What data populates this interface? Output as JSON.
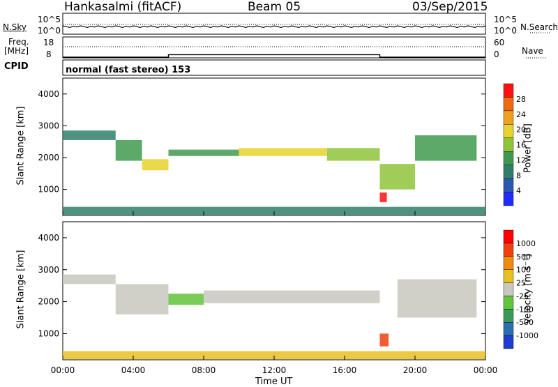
{
  "header": {
    "station": "Hankasalmi (fitACF)",
    "beam": "Beam 05",
    "date": "03/Sep/2015"
  },
  "noise_panel": {
    "left_label": "N.Sky",
    "right_label": "N.Search",
    "left_ticks": [
      "10^5",
      "10^0"
    ],
    "right_ticks": [
      "10^5",
      "10^0"
    ]
  },
  "freq_panel": {
    "left_label_line1": "Freq.",
    "left_label_line2": "[MHz]",
    "left_ticks": [
      "18",
      "8"
    ],
    "right_ticks": [
      "60",
      "0"
    ],
    "right_label": "Nave",
    "freq_step": [
      {
        "t": 0,
        "f": 8
      },
      {
        "t": 6,
        "f": 8
      },
      {
        "t": 6,
        "f": 11
      },
      {
        "t": 18,
        "f": 11
      },
      {
        "t": 18,
        "f": 8
      },
      {
        "t": 24,
        "f": 8
      }
    ]
  },
  "cpid": {
    "label": "CPID",
    "mode": "normal (fast stereo) 153"
  },
  "x_axis": {
    "label": "Time UT",
    "ticks": [
      "00:00",
      "04:00",
      "08:00",
      "12:00",
      "16:00",
      "20:00",
      "00:00"
    ]
  },
  "power_panel": {
    "ylabel": "Slant Range [km]",
    "yticks": [
      "4000",
      "3000",
      "2000",
      "1000"
    ],
    "colorbar_label": "Power [dB]",
    "colorbar_ticks": [
      "28",
      "24",
      "20",
      "16",
      "12",
      "8",
      "4"
    ],
    "colors": [
      "#1f2bff",
      "#2a5ab0",
      "#2f7f6a",
      "#3f9a4f",
      "#8fc43a",
      "#e8d22e",
      "#f0a020",
      "#f06a10",
      "#ff1010"
    ]
  },
  "velocity_panel": {
    "ylabel": "Slant Range [km]",
    "yticks": [
      "4000",
      "3000",
      "2000",
      "1000"
    ],
    "colorbar_label": "Velocity [m s⁻¹]",
    "colorbar_ticks": [
      "1000",
      "500",
      "100",
      "25",
      "-25",
      "-100",
      "-500",
      "-1000"
    ],
    "colors": [
      "#1e3cd0",
      "#2c6fb0",
      "#3a9a5a",
      "#62c43a",
      "#c8c8c0",
      "#e8c020",
      "#f08a10",
      "#f04010",
      "#ff0000"
    ]
  },
  "chart_data": {
    "type": "heatmap",
    "x_range_hours": [
      0,
      24
    ],
    "y_range_km": [
      180,
      4500
    ],
    "power_bands": [
      {
        "t0": 0.0,
        "t1": 3.0,
        "r0": 2550,
        "r1": 2850,
        "level": 2
      },
      {
        "t0": 3.0,
        "t1": 4.5,
        "r0": 1900,
        "r1": 2550,
        "level": 3
      },
      {
        "t0": 4.5,
        "t1": 6.0,
        "r0": 1600,
        "r1": 1950,
        "level": 5
      },
      {
        "t0": 6.0,
        "t1": 10.0,
        "r0": 2050,
        "r1": 2250,
        "level": 3
      },
      {
        "t0": 10.0,
        "t1": 15.0,
        "r0": 2050,
        "r1": 2300,
        "level": 5
      },
      {
        "t0": 15.0,
        "t1": 18.0,
        "r0": 1900,
        "r1": 2300,
        "level": 4
      },
      {
        "t0": 18.0,
        "t1": 20.0,
        "r0": 1000,
        "r1": 1800,
        "level": 4
      },
      {
        "t0": 20.0,
        "t1": 23.5,
        "r0": 1900,
        "r1": 2700,
        "level": 3
      },
      {
        "t0": 18.0,
        "t1": 18.4,
        "r0": 600,
        "r1": 900,
        "level": 8
      },
      {
        "t0": 0.0,
        "t1": 24.0,
        "r0": 200,
        "r1": 450,
        "level": 2
      }
    ],
    "velocity_bands": [
      {
        "t0": 0.0,
        "t1": 3.0,
        "r0": 2550,
        "r1": 2850,
        "level": 4
      },
      {
        "t0": 3.0,
        "t1": 6.0,
        "r0": 1600,
        "r1": 2550,
        "level": 4
      },
      {
        "t0": 6.0,
        "t1": 8.0,
        "r0": 1900,
        "r1": 2250,
        "level": 3
      },
      {
        "t0": 8.0,
        "t1": 18.0,
        "r0": 1950,
        "r1": 2350,
        "level": 4
      },
      {
        "t0": 18.0,
        "t1": 18.5,
        "r0": 600,
        "r1": 1000,
        "level": 7
      },
      {
        "t0": 19.0,
        "t1": 23.5,
        "r0": 1500,
        "r1": 2700,
        "level": 4
      },
      {
        "t0": 0.0,
        "t1": 24.0,
        "r0": 200,
        "r1": 450,
        "level": 5
      }
    ]
  }
}
